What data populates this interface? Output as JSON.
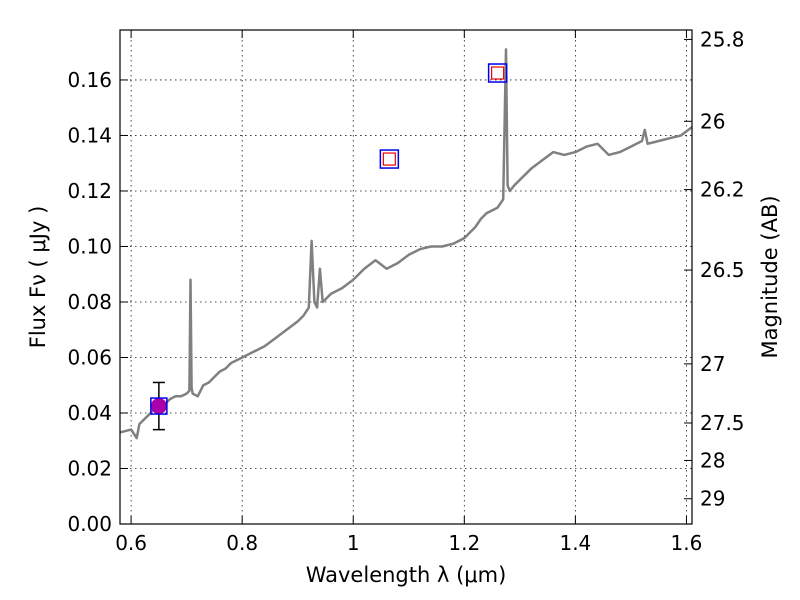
{
  "chart_data": {
    "type": "line",
    "xlabel": "Wavelength  λ (μm)",
    "ylabel": "Flux  Fν  ( μJy )",
    "ylabel_right": "Magnitude (AB)",
    "xlim": [
      0.58,
      1.61
    ],
    "ylim": [
      0.0,
      0.178
    ],
    "x_ticks": [
      0.6,
      0.8,
      1.0,
      1.2,
      1.4,
      1.6
    ],
    "x_tick_labels": [
      "0.6",
      "0.8",
      "1",
      "1.2",
      "1.4",
      "1.6"
    ],
    "y_ticks": [
      0.0,
      0.02,
      0.04,
      0.06,
      0.08,
      0.1,
      0.12,
      0.14,
      0.16
    ],
    "y_tick_labels": [
      "0.00",
      "0.02",
      "0.04",
      "0.06",
      "0.08",
      "0.10",
      "0.12",
      "0.14",
      "0.16"
    ],
    "right_ticks": [
      {
        "flux": 0.1746,
        "label": "25.8"
      },
      {
        "flux": 0.1451,
        "label": "26"
      },
      {
        "flux": 0.1205,
        "label": "26.2"
      },
      {
        "flux": 0.0915,
        "label": "26.5"
      },
      {
        "flux": 0.0577,
        "label": "27"
      },
      {
        "flux": 0.0364,
        "label": "27.5"
      },
      {
        "flux": 0.0229,
        "label": "28"
      },
      {
        "flux": 0.0091,
        "label": "29"
      }
    ],
    "grid": true,
    "spectrum": {
      "color": "#808080",
      "x": [
        0.58,
        0.6,
        0.61,
        0.615,
        0.62,
        0.63,
        0.64,
        0.65,
        0.66,
        0.67,
        0.68,
        0.69,
        0.7,
        0.705,
        0.707,
        0.709,
        0.711,
        0.72,
        0.73,
        0.74,
        0.75,
        0.76,
        0.77,
        0.78,
        0.8,
        0.82,
        0.84,
        0.86,
        0.88,
        0.9,
        0.91,
        0.92,
        0.925,
        0.93,
        0.935,
        0.94,
        0.945,
        0.95,
        0.96,
        0.98,
        1.0,
        1.02,
        1.04,
        1.06,
        1.08,
        1.1,
        1.12,
        1.14,
        1.16,
        1.18,
        1.2,
        1.22,
        1.23,
        1.24,
        1.26,
        1.27,
        1.275,
        1.278,
        1.282,
        1.29,
        1.3,
        1.32,
        1.34,
        1.36,
        1.38,
        1.4,
        1.42,
        1.44,
        1.46,
        1.48,
        1.5,
        1.52,
        1.525,
        1.53,
        1.55,
        1.57,
        1.59,
        1.61
      ],
      "y": [
        0.033,
        0.034,
        0.031,
        0.036,
        0.037,
        0.039,
        0.041,
        0.042,
        0.043,
        0.045,
        0.046,
        0.046,
        0.047,
        0.048,
        0.088,
        0.049,
        0.047,
        0.046,
        0.05,
        0.051,
        0.053,
        0.055,
        0.056,
        0.058,
        0.06,
        0.062,
        0.064,
        0.067,
        0.07,
        0.073,
        0.075,
        0.078,
        0.102,
        0.08,
        0.078,
        0.092,
        0.08,
        0.081,
        0.083,
        0.085,
        0.088,
        0.092,
        0.095,
        0.092,
        0.094,
        0.097,
        0.099,
        0.1,
        0.1,
        0.101,
        0.103,
        0.107,
        0.11,
        0.112,
        0.114,
        0.117,
        0.171,
        0.122,
        0.12,
        0.122,
        0.124,
        0.128,
        0.131,
        0.134,
        0.133,
        0.134,
        0.136,
        0.137,
        0.133,
        0.134,
        0.136,
        0.138,
        0.142,
        0.137,
        0.138,
        0.139,
        0.14,
        0.143
      ]
    },
    "photometry": {
      "x": 0.65,
      "y": 0.0425,
      "error": 0.0085,
      "marker_color": "#aa00aa",
      "box_color": "#0000ee"
    },
    "model_points": [
      {
        "x": 1.065,
        "y": 0.1315
      },
      {
        "x": 1.26,
        "y": 0.1625
      }
    ],
    "model_outer_color": "#0000ee",
    "model_inner_color": "#ee0000"
  }
}
